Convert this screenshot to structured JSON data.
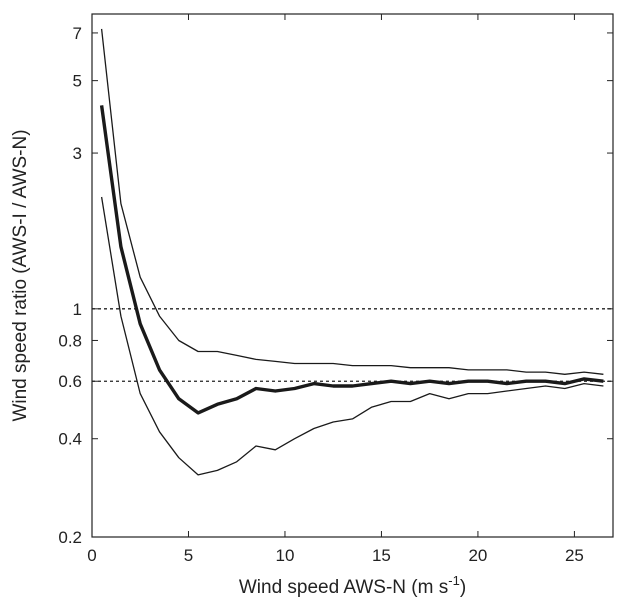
{
  "chart_data": {
    "type": "line",
    "title": "",
    "xlabel": "Wind speed AWS-N (m s",
    "xlabel_sup": "-1",
    "xlabel_close": ")",
    "ylabel": "Wind speed ratio (AWS-I / AWS-N)",
    "xlim": [
      0,
      27
    ],
    "ylim": [
      0.2,
      8
    ],
    "yscale": "log",
    "grid": false,
    "x_ticks": [
      0,
      5,
      10,
      15,
      20,
      25
    ],
    "x_tick_labels": [
      "0",
      "5",
      "10",
      "15",
      "20",
      "25"
    ],
    "y_ticks": [
      0.2,
      0.4,
      0.6,
      0.8,
      1,
      3,
      5,
      7
    ],
    "y_tick_labels": [
      "0.2",
      "0.4",
      "0.6",
      "0.8",
      "1",
      "3",
      "5",
      "7"
    ],
    "reference_lines": [
      1,
      0.6
    ],
    "series": [
      {
        "role": "upper",
        "x": [
          0.5,
          1.5,
          2.5,
          3.5,
          4.5,
          5.5,
          6.5,
          7.5,
          8.5,
          9.5,
          10.5,
          11.5,
          12.5,
          13.5,
          14.5,
          15.5,
          16.5,
          17.5,
          18.5,
          19.5,
          20.5,
          21.5,
          22.5,
          23.5,
          24.5,
          25.5,
          26.5
        ],
        "values": [
          7.2,
          2.1,
          1.25,
          0.95,
          0.8,
          0.74,
          0.74,
          0.72,
          0.7,
          0.69,
          0.68,
          0.68,
          0.68,
          0.67,
          0.67,
          0.67,
          0.66,
          0.66,
          0.66,
          0.65,
          0.65,
          0.65,
          0.64,
          0.64,
          0.63,
          0.64,
          0.63
        ]
      },
      {
        "role": "median",
        "x": [
          0.5,
          1.5,
          2.5,
          3.5,
          4.5,
          5.5,
          6.5,
          7.5,
          8.5,
          9.5,
          10.5,
          11.5,
          12.5,
          13.5,
          14.5,
          15.5,
          16.5,
          17.5,
          18.5,
          19.5,
          20.5,
          21.5,
          22.5,
          23.5,
          24.5,
          25.5,
          26.5
        ],
        "values": [
          4.2,
          1.55,
          0.9,
          0.65,
          0.53,
          0.48,
          0.51,
          0.53,
          0.57,
          0.56,
          0.57,
          0.59,
          0.58,
          0.58,
          0.59,
          0.6,
          0.59,
          0.6,
          0.59,
          0.6,
          0.6,
          0.59,
          0.6,
          0.6,
          0.59,
          0.61,
          0.6
        ]
      },
      {
        "role": "lower",
        "x": [
          0.5,
          1.5,
          2.5,
          3.5,
          4.5,
          5.5,
          6.5,
          7.5,
          8.5,
          9.5,
          10.5,
          11.5,
          12.5,
          13.5,
          14.5,
          15.5,
          16.5,
          17.5,
          18.5,
          19.5,
          20.5,
          21.5,
          22.5,
          23.5,
          24.5,
          25.5,
          26.5
        ],
        "values": [
          2.2,
          0.95,
          0.55,
          0.42,
          0.35,
          0.31,
          0.32,
          0.34,
          0.38,
          0.37,
          0.4,
          0.43,
          0.45,
          0.46,
          0.5,
          0.52,
          0.52,
          0.55,
          0.53,
          0.55,
          0.55,
          0.56,
          0.57,
          0.58,
          0.57,
          0.59,
          0.58
        ]
      }
    ]
  },
  "colors": {
    "line": "#1a1a1a",
    "axis": "#222222",
    "reference": "#222222",
    "background": "#ffffff"
  }
}
